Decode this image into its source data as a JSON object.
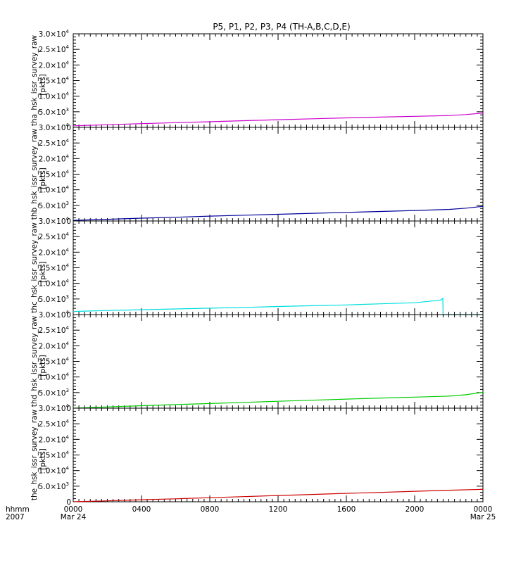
{
  "title": "P5, P1, P2, P3, P4 (TH-A,B,C,D,E)",
  "x_axis": {
    "label_top": "hhmm",
    "label_bottom": "2007",
    "ticks": [
      {
        "t": 0,
        "top": "0000",
        "bottom": "Mar 24"
      },
      {
        "t": 240,
        "top": "0400",
        "bottom": ""
      },
      {
        "t": 480,
        "top": "0800",
        "bottom": ""
      },
      {
        "t": 720,
        "top": "1200",
        "bottom": ""
      },
      {
        "t": 960,
        "top": "1600",
        "bottom": ""
      },
      {
        "t": 1200,
        "top": "2000",
        "bottom": ""
      },
      {
        "t": 1440,
        "top": "0000",
        "bottom": "Mar 25"
      }
    ]
  },
  "y_ticks": [
    {
      "v": 0,
      "mant": "0",
      "exp": ""
    },
    {
      "v": 5000,
      "mant": "5.0×10",
      "exp": "3"
    },
    {
      "v": 10000,
      "mant": "1.0×10",
      "exp": "4"
    },
    {
      "v": 15000,
      "mant": "1.5×10",
      "exp": "4"
    },
    {
      "v": 20000,
      "mant": "2.0×10",
      "exp": "4"
    },
    {
      "v": 25000,
      "mant": "2.5×10",
      "exp": "4"
    },
    {
      "v": 30000,
      "mant": "3.0×10",
      "exp": "4"
    }
  ],
  "chart_data": [
    {
      "type": "line",
      "ylabel": "tha_hsk_issr_survey_raw",
      "yunits": "[pkts]",
      "ylim": [
        0,
        30000
      ],
      "xlim": [
        0,
        1440
      ],
      "series": [
        {
          "color": "#cc00cc",
          "x": [
            0,
            120,
            240,
            360,
            480,
            600,
            720,
            840,
            960,
            1080,
            1200,
            1320,
            1380,
            1440
          ],
          "values": [
            500,
            850,
            1200,
            1500,
            1800,
            2150,
            2450,
            2750,
            3050,
            3300,
            3550,
            3800,
            4100,
            4600
          ]
        }
      ]
    },
    {
      "type": "line",
      "ylabel": "thb_hsk_issr_survey_raw",
      "yunits": "[pkts]",
      "ylim": [
        0,
        30000
      ],
      "xlim": [
        0,
        1440
      ],
      "series": [
        {
          "color": "#000099",
          "x": [
            0,
            120,
            240,
            360,
            480,
            600,
            720,
            840,
            960,
            1080,
            1200,
            1320,
            1380,
            1440
          ],
          "values": [
            200,
            550,
            900,
            1200,
            1550,
            1850,
            2150,
            2450,
            2750,
            3050,
            3350,
            3700,
            4100,
            4700
          ]
        }
      ]
    },
    {
      "type": "line",
      "ylabel": "thc_hsk_issr_survey_raw",
      "yunits": "[pkts]",
      "ylim": [
        0,
        30000
      ],
      "xlim": [
        0,
        1440
      ],
      "series": [
        {
          "color": "#00dddd",
          "x": [
            0,
            120,
            240,
            360,
            480,
            600,
            720,
            840,
            960,
            1080,
            1200,
            1290,
            1299,
            1300,
            1440
          ],
          "values": [
            1000,
            1300,
            1550,
            1800,
            2050,
            2300,
            2600,
            2850,
            3100,
            3450,
            3800,
            4600,
            5200,
            0,
            0
          ]
        }
      ]
    },
    {
      "type": "line",
      "ylabel": "thd_hsk_issr_survey_raw",
      "yunits": "[pkts]",
      "ylim": [
        0,
        30000
      ],
      "xlim": [
        0,
        1440
      ],
      "series": [
        {
          "color": "#00cc00",
          "x": [
            0,
            120,
            240,
            360,
            480,
            600,
            720,
            840,
            960,
            1080,
            1200,
            1320,
            1380,
            1440
          ],
          "values": [
            0,
            400,
            800,
            1150,
            1500,
            1850,
            2200,
            2550,
            2900,
            3250,
            3550,
            3850,
            4300,
            5100
          ]
        }
      ]
    },
    {
      "type": "line",
      "ylabel": "the_hsk_issr_survey_raw",
      "yunits": "[pkts]",
      "ylim": [
        0,
        30000
      ],
      "xlim": [
        0,
        1440
      ],
      "series": [
        {
          "color": "#cc0000",
          "x": [
            0,
            120,
            240,
            360,
            480,
            600,
            720,
            840,
            960,
            1080,
            1200,
            1320,
            1440
          ],
          "values": [
            0,
            300,
            650,
            950,
            1300,
            1650,
            2000,
            2350,
            2700,
            3000,
            3350,
            3700,
            4000
          ]
        }
      ]
    }
  ]
}
